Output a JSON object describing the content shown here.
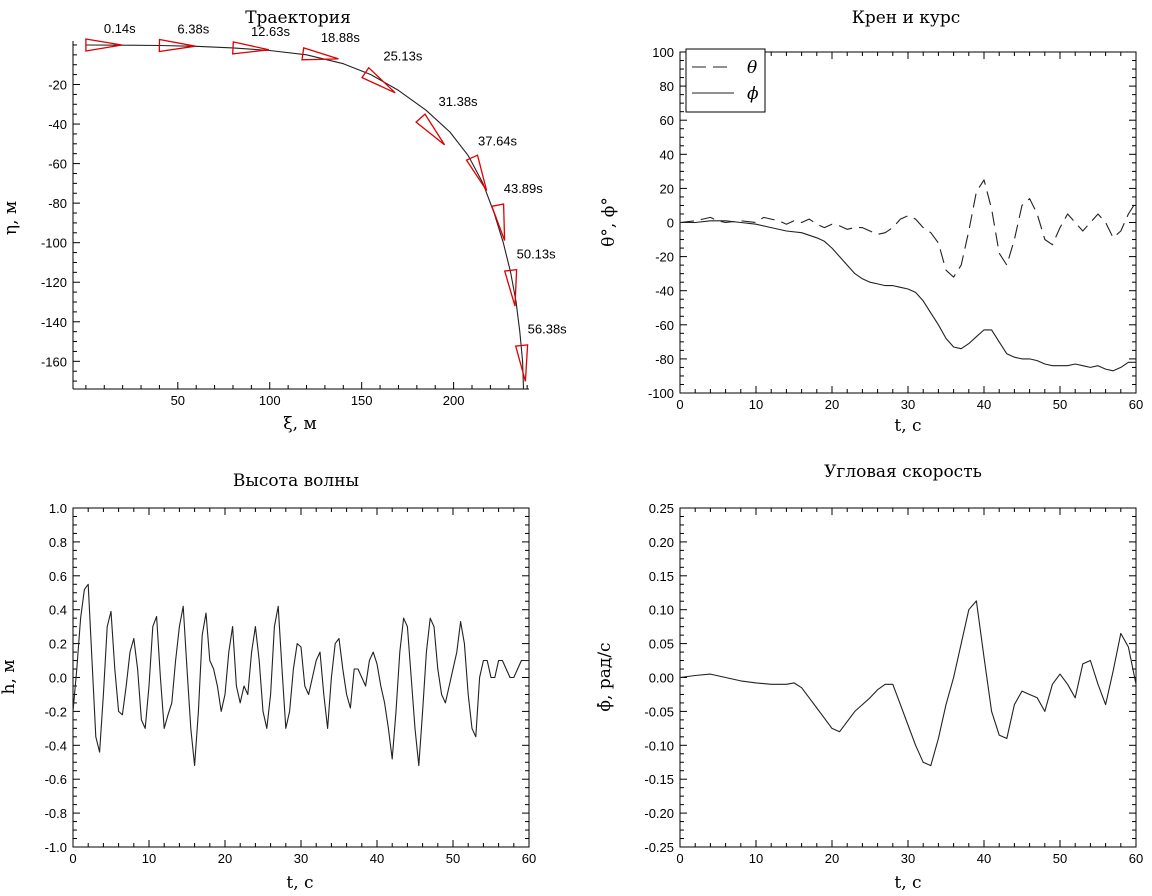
{
  "chart_data": [
    {
      "type": "line",
      "title": "Траектория",
      "xlabel": "ξ, м",
      "ylabel": "η, м",
      "xlim": [
        -7,
        241
      ],
      "ylim": [
        -174,
        2
      ],
      "xticks": [
        50,
        100,
        150,
        200
      ],
      "yticks": [
        -20,
        -40,
        -60,
        -80,
        -100,
        -120,
        -140,
        -160
      ],
      "grid": false,
      "series": [
        {
          "x": [
            0,
            20,
            40,
            60,
            80,
            100,
            120,
            140,
            155,
            170,
            185,
            198,
            208,
            216,
            222,
            227,
            231,
            234,
            236,
            237.5,
            238
          ],
          "y": [
            0,
            -0.1,
            -0.3,
            -0.7,
            -1.5,
            -2.8,
            -5,
            -9.5,
            -15,
            -23,
            -33,
            -44,
            -56,
            -70,
            -85,
            -100,
            -115,
            -130,
            -145,
            -160,
            -174
          ]
        }
      ],
      "markers": {
        "color": "#e00000",
        "items": [
          {
            "label": "0.14s",
            "x": 0,
            "y": 0,
            "heading": 0
          },
          {
            "label": "6.38s",
            "x": 40,
            "y": -0.3,
            "heading": -1
          },
          {
            "label": "12.63s",
            "x": 80,
            "y": -1.5,
            "heading": -3
          },
          {
            "label": "18.88s",
            "x": 118,
            "y": -4.5,
            "heading": -8
          },
          {
            "label": "25.13s",
            "x": 152,
            "y": -14,
            "heading": -34
          },
          {
            "label": "31.38s",
            "x": 182,
            "y": -37,
            "heading": -48
          },
          {
            "label": "37.64s",
            "x": 210,
            "y": -57,
            "heading": -66
          },
          {
            "label": "43.89s",
            "x": 224,
            "y": -81,
            "heading": -79
          },
          {
            "label": "50.13s",
            "x": 231,
            "y": -114,
            "heading": -83
          },
          {
            "label": "56.38s",
            "x": 237,
            "y": -152,
            "heading": -84
          }
        ]
      }
    },
    {
      "type": "line",
      "title": "Крен и курс",
      "xlabel": "t, с",
      "ylabel": "θ°, ϕ°",
      "xlim": [
        0,
        60
      ],
      "ylim": [
        -100,
        100
      ],
      "xticks": [
        0,
        10,
        20,
        30,
        40,
        50,
        60
      ],
      "yticks": [
        100,
        80,
        60,
        40,
        20,
        0,
        -20,
        -40,
        -60,
        -80,
        -100
      ],
      "legend": "top-left",
      "grid": false,
      "series": [
        {
          "name": "θ",
          "style": "dashed",
          "x": [
            0,
            2,
            3,
            4,
            5,
            6,
            8,
            10,
            11,
            12,
            13,
            14,
            15,
            16,
            17,
            18,
            19,
            20,
            21,
            22,
            23,
            24,
            25,
            26,
            27,
            28,
            29,
            30,
            31,
            32,
            33,
            34,
            35,
            36,
            37,
            38,
            39,
            40,
            41,
            42,
            43,
            44,
            45,
            46,
            47,
            48,
            49,
            50,
            51,
            52,
            53,
            54,
            55,
            56,
            57,
            58,
            59,
            60
          ],
          "y": [
            0,
            1,
            2,
            3,
            1,
            0,
            1,
            0,
            3,
            2,
            1,
            -1,
            1,
            0,
            2,
            -1,
            -3,
            -1,
            -2,
            -4,
            -3,
            -3,
            -5,
            -7,
            -6,
            -3,
            2,
            4,
            2,
            -3,
            -6,
            -12,
            -28,
            -32,
            -25,
            -5,
            18,
            25,
            8,
            -18,
            -25,
            -10,
            10,
            14,
            5,
            -10,
            -13,
            -3,
            5,
            0,
            -5,
            0,
            5,
            0,
            -9,
            -5,
            5,
            12
          ]
        },
        {
          "name": "ϕ",
          "style": "solid",
          "x": [
            0,
            2,
            4,
            6,
            8,
            10,
            12,
            14,
            16,
            18,
            19,
            20,
            21,
            22,
            23,
            24,
            25,
            26,
            27,
            28,
            29,
            30,
            31,
            32,
            33,
            34,
            35,
            36,
            37,
            38,
            39,
            40,
            41,
            42,
            43,
            44,
            45,
            46,
            47,
            48,
            49,
            50,
            51,
            52,
            53,
            54,
            55,
            56,
            57,
            58,
            59,
            60
          ],
          "y": [
            0,
            0,
            1,
            1,
            0,
            -1,
            -3,
            -5,
            -6,
            -9,
            -11,
            -15,
            -20,
            -25,
            -30,
            -33,
            -35,
            -36,
            -37,
            -37,
            -38,
            -39,
            -41,
            -46,
            -53,
            -60,
            -68,
            -73,
            -74,
            -71,
            -67,
            -63,
            -63,
            -70,
            -77,
            -79,
            -80,
            -80,
            -81,
            -83,
            -84,
            -84,
            -84,
            -83,
            -84,
            -85,
            -84,
            -86,
            -87,
            -85,
            -82,
            -82
          ]
        }
      ]
    },
    {
      "type": "line",
      "title": "Высота волны",
      "xlabel": "t, с",
      "ylabel": "h, м",
      "xlim": [
        0,
        60
      ],
      "ylim": [
        -1.0,
        1.0
      ],
      "xticks": [
        0,
        10,
        20,
        30,
        40,
        50,
        60
      ],
      "yticks": [
        1.0,
        0.8,
        0.6,
        0.4,
        0.2,
        0.0,
        -0.2,
        -0.4,
        -0.6,
        -0.8,
        -1.0
      ],
      "grid": false,
      "series": [
        {
          "x": [
            0,
            0.5,
            1,
            1.5,
            2,
            2.5,
            3,
            3.5,
            4,
            4.5,
            5,
            5.5,
            6,
            6.5,
            7,
            7.5,
            8,
            8.5,
            9,
            9.5,
            10,
            10.5,
            11,
            11.5,
            12,
            12.5,
            13,
            13.5,
            14,
            14.5,
            15,
            15.5,
            16,
            16.5,
            17,
            17.5,
            18,
            18.5,
            19,
            19.5,
            20,
            20.5,
            21,
            21.5,
            22,
            22.5,
            23,
            23.5,
            24,
            24.5,
            25,
            25.5,
            26,
            26.5,
            27,
            27.5,
            28,
            28.5,
            29,
            29.5,
            30,
            30.5,
            31,
            31.5,
            32,
            32.5,
            33,
            33.5,
            34,
            34.5,
            35,
            35.5,
            36,
            36.5,
            37,
            37.5,
            38,
            38.5,
            39,
            39.5,
            40,
            40.5,
            41,
            41.5,
            42,
            42.5,
            43,
            43.5,
            44,
            44.5,
            45,
            45.5,
            46,
            46.5,
            47,
            47.5,
            48,
            48.5,
            49,
            49.5,
            50,
            50.5,
            51,
            51.5,
            52,
            52.5,
            53,
            53.5,
            54,
            54.5,
            55,
            55.5,
            56,
            56.5,
            57,
            57.5,
            58,
            58.5,
            59,
            59.5,
            60
          ],
          "y": [
            -0.2,
            0.05,
            0.35,
            0.52,
            0.55,
            0.1,
            -0.35,
            -0.44,
            -0.1,
            0.3,
            0.39,
            0.05,
            -0.2,
            -0.22,
            -0.05,
            0.15,
            0.23,
            0.05,
            -0.25,
            -0.3,
            -0.05,
            0.3,
            0.36,
            0.0,
            -0.3,
            -0.22,
            -0.15,
            0.1,
            0.3,
            0.42,
            0.05,
            -0.3,
            -0.52,
            -0.2,
            0.25,
            0.38,
            0.1,
            0.05,
            -0.05,
            -0.2,
            -0.1,
            0.15,
            0.3,
            -0.05,
            -0.15,
            -0.05,
            -0.1,
            0.15,
            0.3,
            0.1,
            -0.2,
            -0.3,
            -0.1,
            0.3,
            0.42,
            0.05,
            -0.3,
            -0.2,
            0.05,
            0.2,
            0.18,
            -0.05,
            -0.1,
            0.0,
            0.1,
            0.15,
            -0.1,
            -0.3,
            0.0,
            0.2,
            0.23,
            0.05,
            -0.1,
            -0.18,
            0.05,
            0.05,
            0.0,
            -0.05,
            0.1,
            0.15,
            0.08,
            -0.05,
            -0.15,
            -0.3,
            -0.48,
            -0.2,
            0.15,
            0.35,
            0.3,
            0.0,
            -0.3,
            -0.52,
            -0.2,
            0.15,
            0.35,
            0.3,
            0.05,
            -0.1,
            -0.15,
            -0.05,
            0.05,
            0.15,
            0.33,
            0.2,
            -0.1,
            -0.3,
            -0.35,
            0.0,
            0.1,
            0.1,
            0.0,
            0.0,
            0.1,
            0.1,
            0.05,
            0.0,
            0.0,
            0.05,
            0.1,
            0.1,
            0.1
          ]
        }
      ]
    },
    {
      "type": "line",
      "title": "Угловая скорость",
      "xlabel": "t, с",
      "ylabel": "ϕ̇, рад/с",
      "xlim": [
        0,
        60
      ],
      "ylim": [
        -0.25,
        0.25
      ],
      "xticks": [
        0,
        10,
        20,
        30,
        40,
        50,
        60
      ],
      "yticks": [
        0.25,
        0.2,
        0.15,
        0.1,
        0.05,
        0.0,
        -0.05,
        -0.1,
        -0.15,
        -0.2,
        -0.25
      ],
      "grid": false,
      "series": [
        {
          "x": [
            0,
            2,
            4,
            6,
            8,
            10,
            12,
            14,
            15,
            16,
            17,
            18,
            19,
            20,
            21,
            22,
            23,
            24,
            25,
            26,
            27,
            28,
            29,
            30,
            31,
            32,
            33,
            34,
            35,
            36,
            37,
            38,
            39,
            40,
            41,
            42,
            43,
            44,
            45,
            46,
            47,
            48,
            49,
            50,
            51,
            52,
            53,
            54,
            55,
            56,
            57,
            58,
            59,
            60
          ],
          "y": [
            0.0,
            0.003,
            0.005,
            0.0,
            -0.005,
            -0.008,
            -0.01,
            -0.01,
            -0.008,
            -0.015,
            -0.03,
            -0.045,
            -0.06,
            -0.075,
            -0.08,
            -0.065,
            -0.05,
            -0.04,
            -0.03,
            -0.018,
            -0.01,
            -0.01,
            -0.04,
            -0.07,
            -0.1,
            -0.125,
            -0.13,
            -0.09,
            -0.04,
            0.0,
            0.05,
            0.1,
            0.113,
            0.03,
            -0.05,
            -0.085,
            -0.09,
            -0.04,
            -0.02,
            -0.025,
            -0.03,
            -0.05,
            -0.01,
            0.005,
            -0.01,
            -0.03,
            0.02,
            0.025,
            -0.01,
            -0.04,
            0.01,
            0.065,
            0.045,
            -0.01
          ]
        }
      ]
    }
  ]
}
